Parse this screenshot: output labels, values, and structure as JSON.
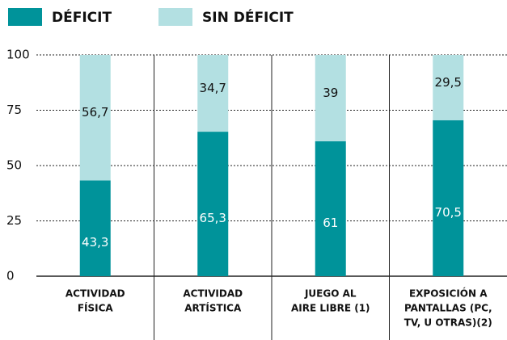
{
  "chart_data": {
    "type": "stacked_bar",
    "categories": [
      [
        "ACTIVIDAD",
        "FÍSICA"
      ],
      [
        "ACTIVIDAD",
        "ARTÍSTICA"
      ],
      [
        "JUEGO AL",
        "AIRE LIBRE (1)"
      ],
      [
        "EXPOSICIÓN A",
        "PANTALLAS (PC,",
        "TV, U OTRAS)(2)"
      ]
    ],
    "series": [
      {
        "name": "DÉFICIT",
        "color": "#00939a",
        "values": [
          43.3,
          65.3,
          61,
          70.5
        ],
        "value_labels": [
          "43,3",
          "65,3",
          "61",
          "70,5"
        ]
      },
      {
        "name": "SIN DÉFICIT",
        "color": "#b3e0e2",
        "values": [
          56.7,
          34.7,
          39,
          29.5
        ],
        "value_labels": [
          "56,7",
          "34,7",
          "39",
          "29,5"
        ]
      }
    ],
    "ylim": [
      0,
      100
    ],
    "yticks": [
      0,
      25,
      50,
      75,
      100
    ],
    "grid": true
  }
}
